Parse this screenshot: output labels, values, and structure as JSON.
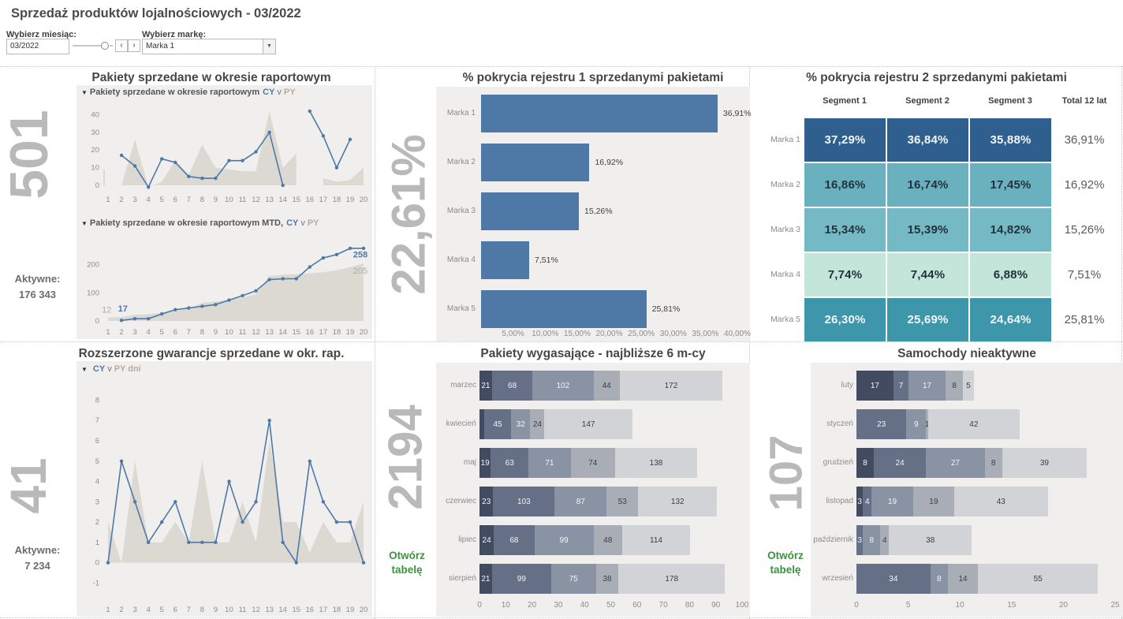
{
  "header": {
    "title_prefix": "Sprzedaż produktów lojalnościowych - ",
    "title_date": "03/2022",
    "month_filter_label": "Wybierz miesiąc:",
    "month_value": "03/2022",
    "prev_icon": "‹",
    "next_icon": "›",
    "brand_filter_label": "Wybierz markę:",
    "brand_value": "Marka 1",
    "dropdown_icon": "▼"
  },
  "panels": {
    "pakiety": {
      "title": "Pakiety sprzedane w okresie raportowym",
      "big_number": "501",
      "aktywne_label": "Aktywne:",
      "aktywne_value": "176 343",
      "legend1": {
        "marker": "▼",
        "prefix": "Pakiety sprzedane w okresie raportowym",
        "cy": "CY",
        "vs": "v",
        "py": "PY"
      },
      "legend2": {
        "marker": "▼",
        "prefix": "Pakiety sprzedane w okresie raportowym MTD,",
        "cy": "CY",
        "vs": "v",
        "py": "PY"
      }
    },
    "rejestr1": {
      "title": "% pokrycia rejestru 1 sprzedanymi pakietami",
      "big_number": "22,61%"
    },
    "rejestr2": {
      "title": "% pokrycia rejestru 2 sprzedanymi pakietami"
    },
    "gwarancje": {
      "title": "Rozszerzone gwarancje sprzedane w okr. rap.",
      "big_number": "41",
      "aktywne_label": "Aktywne:",
      "aktywne_value": "7 234",
      "legend": {
        "marker": "▼",
        "cy": "CY",
        "vs": "v",
        "py": "PY dni"
      }
    },
    "wygasajace": {
      "title": "Pakiety wygasające - najbliższe 6 m-cy",
      "big_number": "2194",
      "link_line1": "Otwórz",
      "link_line2": "tabelę"
    },
    "nieaktywne": {
      "title": "Samochody nieaktywne",
      "big_number": "107",
      "link_line1": "Otwórz",
      "link_line2": "tabelę"
    }
  },
  "colors": {
    "accent_blue": "#4e79a7",
    "py_area": "#dcd8d2",
    "worksheet_bg": "#f0efee",
    "big_number_gray": "#b9b9b9",
    "link_green": "#3f9142"
  },
  "chart_data": [
    {
      "id": "cy_py",
      "type": "line",
      "x": [
        1,
        2,
        3,
        4,
        5,
        6,
        7,
        8,
        9,
        10,
        11,
        12,
        13,
        14,
        15,
        16,
        17,
        18,
        19,
        20
      ],
      "yticks": [
        0,
        10,
        20,
        30,
        40
      ],
      "series": [
        {
          "name": "PY",
          "style": "area",
          "color": "#dcd8d2",
          "values": [
            0,
            0,
            26,
            -1,
            2,
            14,
            6,
            23,
            10,
            9,
            8,
            8,
            42,
            10,
            18,
            null,
            4,
            2,
            3,
            10
          ]
        },
        {
          "name": "CY",
          "style": "line",
          "color": "#4e79a7",
          "values": [
            null,
            17,
            11,
            -1,
            15,
            13,
            5,
            4,
            4,
            14,
            14,
            19,
            30,
            0,
            null,
            42,
            28,
            10,
            26,
            null
          ]
        }
      ]
    },
    {
      "id": "mtd",
      "type": "line",
      "x": [
        1,
        2,
        3,
        4,
        5,
        6,
        7,
        8,
        9,
        10,
        11,
        12,
        13,
        14,
        15,
        16,
        17,
        18,
        19,
        20
      ],
      "yticks": [
        0,
        100,
        200
      ],
      "series": [
        {
          "name": "PY",
          "style": "area",
          "color": "#dcd8d2",
          "values": [
            12,
            14,
            22,
            24,
            29,
            40,
            44,
            64,
            69,
            76,
            83,
            95,
            160,
            164,
            166,
            169,
            173,
            180,
            191,
            205
          ]
        },
        {
          "name": "CY",
          "style": "line",
          "color": "#4e79a7",
          "values": [
            null,
            2,
            8,
            8,
            25,
            40,
            46,
            52,
            58,
            74,
            90,
            107,
            147,
            150,
            150,
            192,
            224,
            236,
            258,
            258
          ]
        }
      ],
      "annotations": [
        {
          "text": "12",
          "x": 0.9,
          "y": 30,
          "color": "#b3aca3",
          "bold": false,
          "anchor": "middle"
        },
        {
          "text": "17",
          "x": 2.1,
          "y": 34,
          "color": "#4e79a7",
          "bold": true,
          "anchor": "middle"
        },
        {
          "text": "258",
          "x": 20.3,
          "y": 226,
          "color": "#4e79a7",
          "bold": true,
          "anchor": "end"
        },
        {
          "text": "205",
          "x": 20.3,
          "y": 168,
          "color": "#b3aca3",
          "bold": false,
          "anchor": "end"
        }
      ]
    },
    {
      "id": "rejestr1",
      "type": "bar",
      "categories": [
        "Marka 1",
        "Marka 2",
        "Marka 3",
        "Marka 4",
        "Marka 5"
      ],
      "values": [
        36.91,
        16.92,
        15.26,
        7.51,
        25.81
      ],
      "labels": [
        "36,91%",
        "16,92%",
        "15,26%",
        "7,51%",
        "25,81%"
      ],
      "bar_color": "#4e79a7",
      "xticks": [
        "5,00%",
        "10,00%",
        "15,00%",
        "20,00%",
        "25,00%",
        "30,00%",
        "35,00%",
        "40,00%"
      ],
      "xtick_values": [
        5,
        10,
        15,
        20,
        25,
        30,
        35,
        40
      ],
      "xmax": 40
    },
    {
      "id": "rejestr2",
      "type": "heatmap",
      "columns": [
        "Segment 1",
        "Segment 2",
        "Segment 3",
        "Total 12 lat"
      ],
      "rows": [
        {
          "label": "Marka 1",
          "cells": [
            "37,29%",
            "36,84%",
            "35,88%"
          ],
          "total": "36,91%",
          "bg": "#2f5f8f",
          "fg": "#f2f5f8"
        },
        {
          "label": "Marka 2",
          "cells": [
            "16,86%",
            "16,74%",
            "17,45%"
          ],
          "total": "16,92%",
          "bg": "#69b1be",
          "fg": "#23323e"
        },
        {
          "label": "Marka 3",
          "cells": [
            "15,34%",
            "15,39%",
            "14,82%"
          ],
          "total": "15,26%",
          "bg": "#74b9c3",
          "fg": "#23323e"
        },
        {
          "label": "Marka 4",
          "cells": [
            "7,74%",
            "7,44%",
            "6,88%"
          ],
          "total": "7,51%",
          "bg": "#c3e5da",
          "fg": "#23323e"
        },
        {
          "label": "Marka 5",
          "cells": [
            "26,30%",
            "25,69%",
            "24,64%"
          ],
          "total": "25,81%",
          "bg": "#3e96ab",
          "fg": "#f2f5f8"
        }
      ]
    },
    {
      "id": "gwarancje",
      "type": "line",
      "x": [
        1,
        2,
        3,
        4,
        5,
        6,
        7,
        8,
        9,
        10,
        11,
        12,
        13,
        14,
        15,
        16,
        17,
        18,
        19,
        20
      ],
      "yticks": [
        -1,
        0,
        1,
        2,
        3,
        4,
        5,
        6,
        7,
        8
      ],
      "series": [
        {
          "name": "PY",
          "style": "area",
          "color": "#dcd8d2",
          "values": [
            2,
            0,
            5,
            1,
            1,
            2,
            1,
            5,
            1,
            1,
            3,
            1,
            6,
            2,
            2,
            0.5,
            2,
            1,
            1,
            3
          ]
        },
        {
          "name": "CY",
          "style": "line",
          "color": "#4e79a7",
          "values": [
            0,
            5,
            3,
            1,
            2,
            3,
            1,
            1,
            1,
            4,
            2,
            3,
            7,
            1,
            0,
            5,
            3,
            2,
            2,
            0
          ]
        }
      ]
    },
    {
      "id": "wygasajace",
      "type": "stacked_bar",
      "categories": [
        "marzec",
        "kwiecień",
        "maj",
        "czerwiec",
        "lipiec",
        "sierpień"
      ],
      "palette": [
        "#434b60",
        "#656f85",
        "#8a93a3",
        "#a9aeb6",
        "#d2d3d7"
      ],
      "rows": [
        [
          {
            "v": 21,
            "c": 0
          },
          {
            "v": 68,
            "c": 1
          },
          {
            "v": 102,
            "c": 2
          },
          {
            "v": 44,
            "c": 3
          },
          {
            "v": 172,
            "c": 4
          }
        ],
        [
          {
            "v": 8,
            "c": 0,
            "label": ""
          },
          {
            "v": 45,
            "c": 1
          },
          {
            "v": 32,
            "c": 2
          },
          {
            "v": 24,
            "c": 3
          },
          {
            "v": 147,
            "c": 4
          }
        ],
        [
          {
            "v": 19,
            "c": 0
          },
          {
            "v": 63,
            "c": 1
          },
          {
            "v": 71,
            "c": 2
          },
          {
            "v": 74,
            "c": 3
          },
          {
            "v": 138,
            "c": 4
          }
        ],
        [
          {
            "v": 23,
            "c": 0
          },
          {
            "v": 103,
            "c": 1
          },
          {
            "v": 87,
            "c": 2
          },
          {
            "v": 53,
            "c": 3
          },
          {
            "v": 132,
            "c": 4
          }
        ],
        [
          {
            "v": 24,
            "c": 0
          },
          {
            "v": 68,
            "c": 1
          },
          {
            "v": 99,
            "c": 2
          },
          {
            "v": 48,
            "c": 3
          },
          {
            "v": 114,
            "c": 4
          }
        ],
        [
          {
            "v": 21,
            "c": 0
          },
          {
            "v": 99,
            "c": 1
          },
          {
            "v": 75,
            "c": 2
          },
          {
            "v": 38,
            "c": 3
          },
          {
            "v": 178,
            "c": 4
          }
        ]
      ],
      "xticks": [
        0,
        10,
        20,
        30,
        40,
        50,
        60,
        70,
        80,
        90,
        100
      ],
      "scale_max": 440
    },
    {
      "id": "nieaktywne",
      "type": "stacked_bar",
      "categories": [
        "luty",
        "styczeń",
        "grudzień",
        "listopad",
        "październik",
        "wrzesień"
      ],
      "palette": [
        "#434b60",
        "#656f85",
        "#8a93a3",
        "#a9aeb6",
        "#d2d3d7"
      ],
      "rows": [
        [
          {
            "v": 17,
            "c": 0
          },
          {
            "v": 7,
            "c": 1
          },
          {
            "v": 17,
            "c": 2
          },
          {
            "v": 8,
            "c": 3
          },
          {
            "v": 5,
            "c": 4
          }
        ],
        [
          {
            "v": 23,
            "c": 1
          },
          {
            "v": 9,
            "c": 2
          },
          {
            "v": 1,
            "c": 3
          },
          {
            "v": 42,
            "c": 4
          }
        ],
        [
          {
            "v": 8,
            "c": 0
          },
          {
            "v": 24,
            "c": 1
          },
          {
            "v": 27,
            "c": 2
          },
          {
            "v": 8,
            "c": 3
          },
          {
            "v": 39,
            "c": 4
          }
        ],
        [
          {
            "v": 3,
            "c": 0
          },
          {
            "v": 4,
            "c": 1
          },
          {
            "v": 19,
            "c": 2
          },
          {
            "v": 19,
            "c": 3
          },
          {
            "v": 43,
            "c": 4
          }
        ],
        [
          {
            "v": 3,
            "c": 1
          },
          {
            "v": 8,
            "c": 2
          },
          {
            "v": 4,
            "c": 3
          },
          {
            "v": 38,
            "c": 4
          }
        ],
        [
          {
            "v": 34,
            "c": 1
          },
          {
            "v": 8,
            "c": 2
          },
          {
            "v": 14,
            "c": 3
          },
          {
            "v": 55,
            "c": 4
          }
        ]
      ],
      "xticks": [
        0,
        5,
        10,
        15,
        20,
        25
      ],
      "scale_max": 119
    }
  ]
}
